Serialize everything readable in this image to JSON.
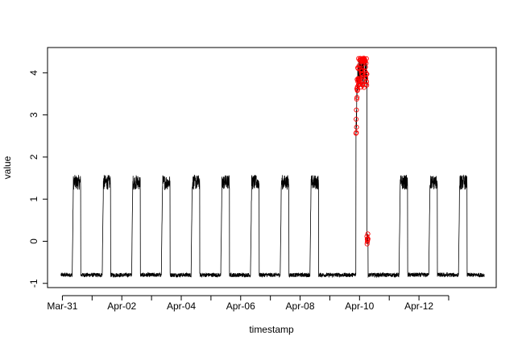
{
  "chart_data": {
    "type": "line",
    "title": "",
    "xlabel": "timestamp",
    "ylabel": "value",
    "xlim": [
      -0.5,
      14.6
    ],
    "ylim": [
      -1.1,
      4.6
    ],
    "x_ticks": [
      {
        "day": 0,
        "label": "Mar-31"
      },
      {
        "day": 1,
        "label": ""
      },
      {
        "day": 2,
        "label": "Apr-02"
      },
      {
        "day": 3,
        "label": ""
      },
      {
        "day": 4,
        "label": "Apr-04"
      },
      {
        "day": 5,
        "label": ""
      },
      {
        "day": 6,
        "label": "Apr-06"
      },
      {
        "day": 7,
        "label": ""
      },
      {
        "day": 8,
        "label": "Apr-08"
      },
      {
        "day": 9,
        "label": ""
      },
      {
        "day": 10,
        "label": "Apr-10"
      },
      {
        "day": 11,
        "label": ""
      },
      {
        "day": 12,
        "label": "Apr-12"
      },
      {
        "day": 13,
        "label": ""
      }
    ],
    "y_ticks": [
      -1,
      0,
      1,
      2,
      3,
      4
    ],
    "series": [
      {
        "name": "value",
        "color": "#000000",
        "start_day": -0.05,
        "end_day": 14.2,
        "low_level": -0.8,
        "high_level": 1.4,
        "daily_high_periods": [
          {
            "start": 0.33,
            "end": 0.62
          },
          {
            "start": 1.34,
            "end": 1.62
          },
          {
            "start": 2.33,
            "end": 2.62
          },
          {
            "start": 3.33,
            "end": 3.62
          },
          {
            "start": 4.33,
            "end": 4.62
          },
          {
            "start": 5.33,
            "end": 5.62
          },
          {
            "start": 6.33,
            "end": 6.62
          },
          {
            "start": 7.33,
            "end": 7.62
          },
          {
            "start": 8.33,
            "end": 8.62
          },
          {
            "start": 11.33,
            "end": 11.62
          },
          {
            "start": 12.33,
            "end": 12.62
          },
          {
            "start": 13.33,
            "end": 13.62
          }
        ],
        "anomaly_period": {
          "start": 9.88,
          "end": 10.25,
          "low": 2.5,
          "high": 4.35
        },
        "anomaly_drop": {
          "start": 10.25,
          "end": 10.29,
          "value": 0.05
        }
      }
    ],
    "anomaly_points": {
      "color": "#ff0000",
      "marker": "open-circle",
      "description_range": {
        "x_start": 9.88,
        "x_end": 10.3,
        "y_low": -0.05,
        "y_high": 4.35
      }
    }
  }
}
